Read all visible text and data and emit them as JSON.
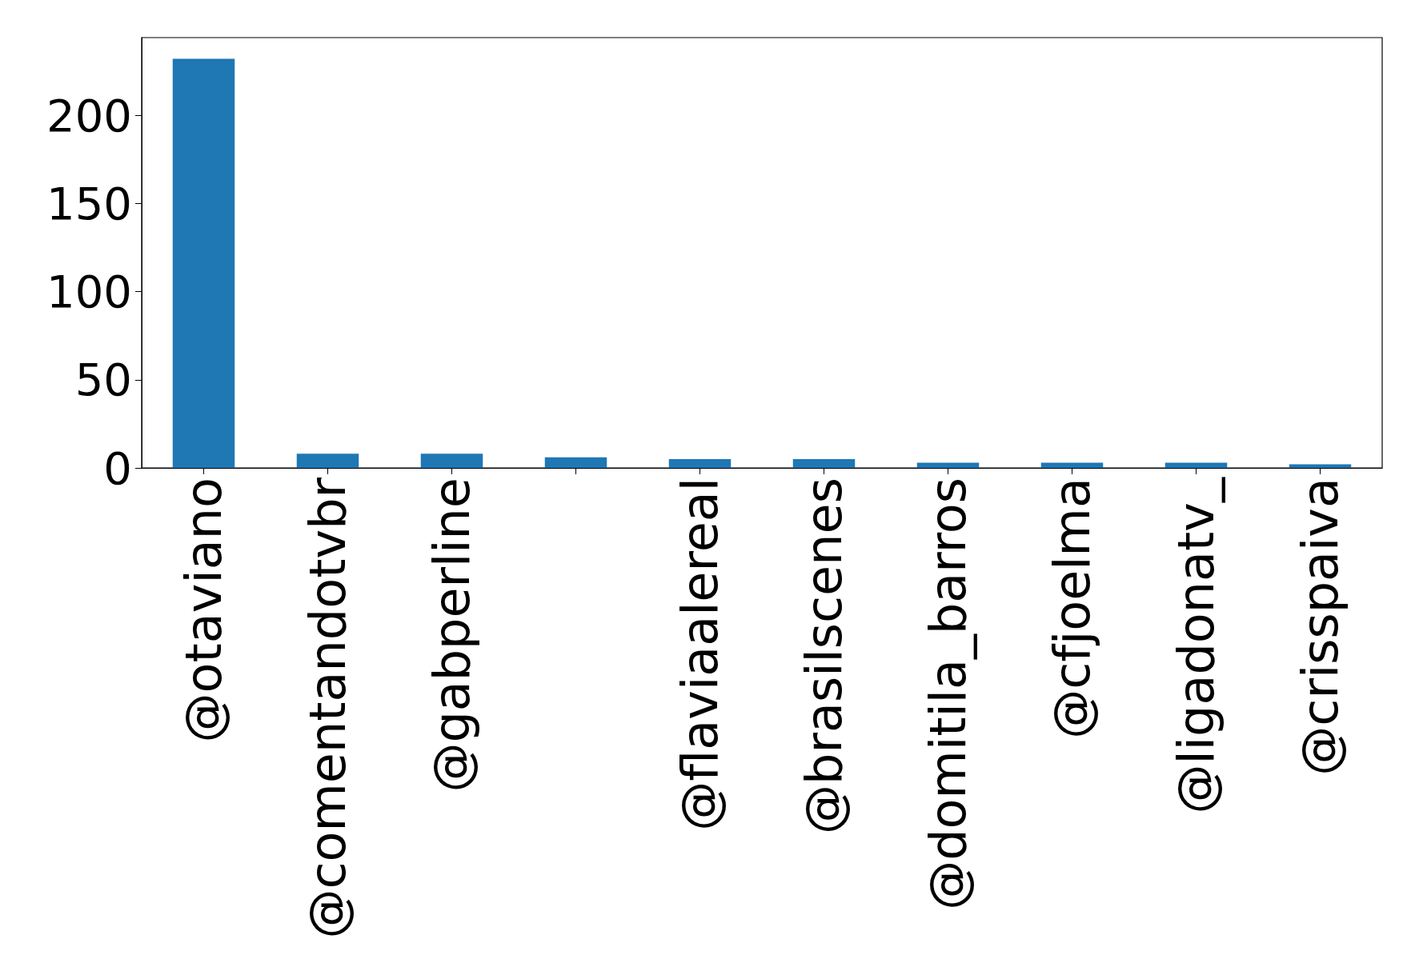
{
  "chart_data": {
    "type": "bar",
    "categories": [
      "@otaviano",
      "@comentandotvbr",
      "@gabperline",
      null,
      "@flaviaalereal",
      "@brasilscenes",
      "@domitila_barros",
      "@cfjoelma",
      "@ligadonatv_",
      "@crisspaiva"
    ],
    "values": [
      232,
      8,
      8,
      6,
      5,
      5,
      3,
      3,
      3,
      2
    ],
    "color": "#1f77b4",
    "ylim": [
      0,
      244
    ],
    "yticks": [
      0,
      50,
      100,
      150,
      200
    ],
    "grid": false
  }
}
